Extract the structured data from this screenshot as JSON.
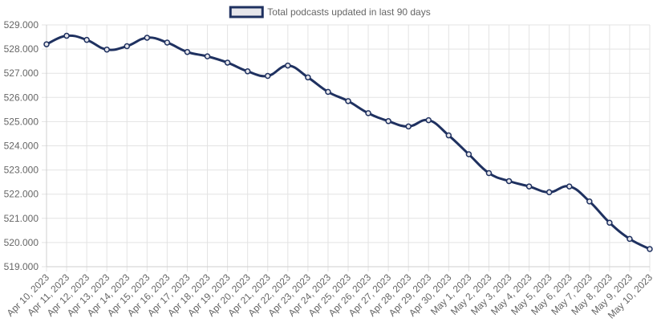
{
  "chart_data": {
    "type": "line",
    "legend": {
      "position": "top-center"
    },
    "series": [
      {
        "name": "Total podcasts updated in last 90 days",
        "color": "#1f3160",
        "fill_color": "#e6e6eb",
        "values": [
          528.2,
          528.55,
          528.38,
          527.98,
          528.12,
          528.47,
          528.27,
          527.88,
          527.7,
          527.44,
          527.08,
          526.89,
          527.32,
          526.83,
          526.23,
          525.85,
          525.35,
          525.02,
          524.8,
          525.06,
          524.43,
          523.65,
          522.87,
          522.54,
          522.32,
          522.08,
          522.32,
          521.7,
          520.82,
          520.15,
          519.73
        ]
      }
    ],
    "categories": [
      "Apr 10, 2023",
      "Apr 11, 2023",
      "Apr 12, 2023",
      "Apr 13, 2023",
      "Apr 14, 2023",
      "Apr 15, 2023",
      "Apr 16, 2023",
      "Apr 17, 2023",
      "Apr 18, 2023",
      "Apr 19, 2023",
      "Apr 20, 2023",
      "Apr 21, 2023",
      "Apr 22, 2023",
      "Apr 23, 2023",
      "Apr 24, 2023",
      "Apr 25, 2023",
      "Apr 26, 2023",
      "Apr 27, 2023",
      "Apr 28, 2023",
      "Apr 29, 2023",
      "Apr 30, 2023",
      "May 1, 2023",
      "May 2, 2023",
      "May 3, 2023",
      "May 4, 2023",
      "May 5, 2023",
      "May 6, 2023",
      "May 7, 2023",
      "May 8, 2023",
      "May 9, 2023",
      "May 10, 2023"
    ],
    "y_ticks": [
      {
        "value": 529,
        "label": "529.000"
      },
      {
        "value": 528,
        "label": "528.000"
      },
      {
        "value": 527,
        "label": "527.000"
      },
      {
        "value": 526,
        "label": "526.000"
      },
      {
        "value": 525,
        "label": "525.000"
      },
      {
        "value": 524,
        "label": "524.000"
      },
      {
        "value": 523,
        "label": "523.000"
      },
      {
        "value": 522,
        "label": "522.000"
      },
      {
        "value": 521,
        "label": "521.000"
      },
      {
        "value": 520,
        "label": "520.000"
      },
      {
        "value": 519,
        "label": "519.000"
      }
    ],
    "ylim": [
      519,
      529
    ],
    "grid": true
  }
}
